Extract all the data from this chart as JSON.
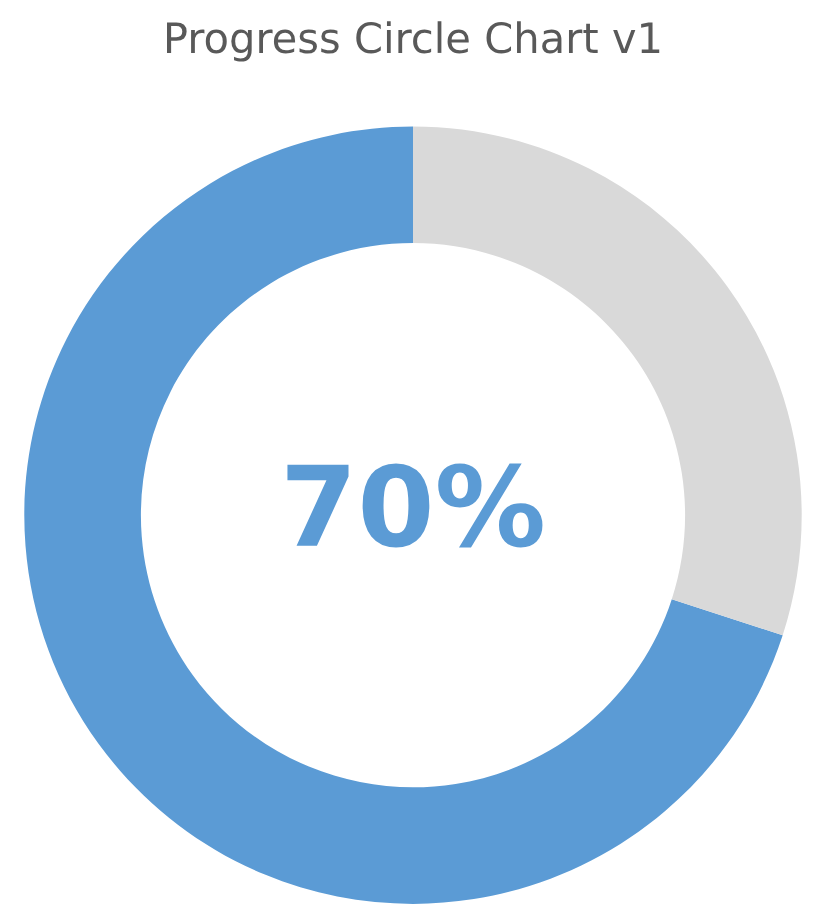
{
  "chart_data": {
    "type": "donut",
    "title": "Progress Circle Chart v1",
    "categories": [
      null,
      null
    ],
    "values": [
      70,
      30
    ],
    "colors": [
      "#5b9bd5",
      "#d9d9d9"
    ],
    "value_labels": [
      "70%",
      null
    ]
  }
}
